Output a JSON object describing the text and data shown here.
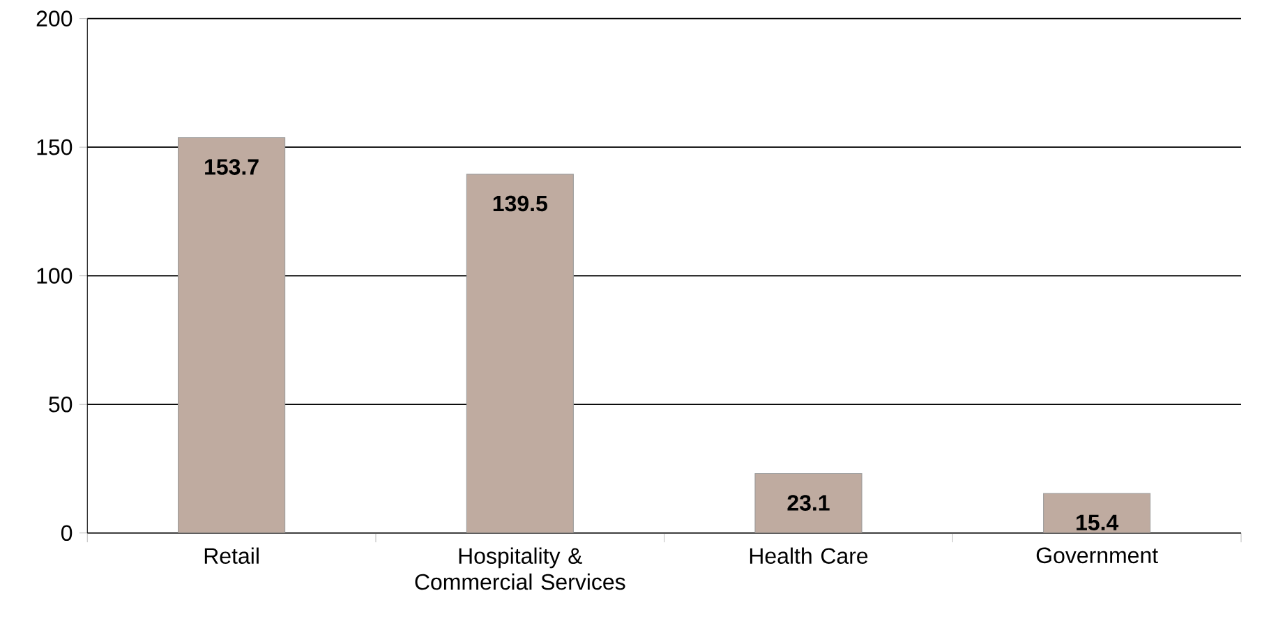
{
  "chart_data": {
    "type": "bar",
    "categories": [
      "Retail",
      "Hospitality & Commercial Services",
      "Health Care",
      "Government"
    ],
    "values": [
      153.7,
      139.5,
      23.1,
      15.4
    ],
    "color": "#bfaba0",
    "ylim": [
      0,
      200
    ],
    "yticks": [
      0,
      50,
      100,
      150,
      200
    ],
    "grid": "y",
    "data_labels": true
  }
}
